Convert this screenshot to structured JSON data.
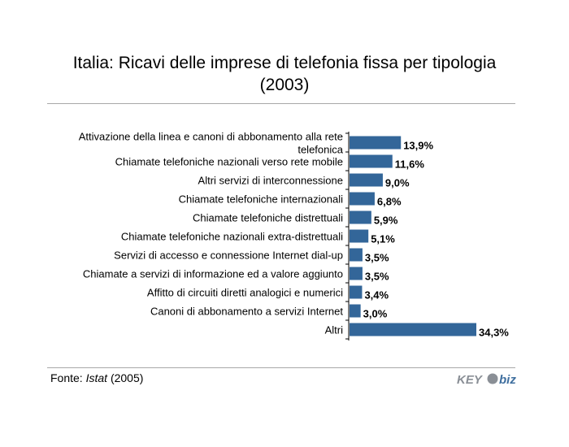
{
  "title_line1": "Italia: Ricavi delle imprese di telefonia fissa per tipologia",
  "title_line2": "(2003)",
  "source": {
    "prefix": "Fonte: ",
    "name": "Istat",
    "suffix": " (2005)"
  },
  "logo": {
    "text_key": "KEY",
    "text_biz": "biz"
  },
  "colors": {
    "bar": "#336699",
    "axis": "#000000"
  },
  "chart_data": {
    "type": "bar",
    "orientation": "horizontal",
    "title": "Italia: Ricavi delle imprese di telefonia fissa per tipologia (2003)",
    "xlabel": "",
    "ylabel": "",
    "unit": "%",
    "grid": false,
    "categories": [
      [
        "Attivazione della linea e canoni di abbonamento alla rete",
        "telefonica"
      ],
      [
        "Chiamate telefoniche nazionali verso rete mobile"
      ],
      [
        "Altri servizi di interconnessione"
      ],
      [
        "Chiamate telefoniche internazionali"
      ],
      [
        "Chiamate telefoniche distrettuali"
      ],
      [
        "Chiamate telefoniche nazionali extra-distrettuali"
      ],
      [
        "Servizi di accesso e connessione Internet dial-up"
      ],
      [
        "Chiamate a servizi di informazione ed a valore aggiunto"
      ],
      [
        "Affitto di circuiti diretti analogici e numerici"
      ],
      [
        "Canoni di abbonamento a servizi Internet"
      ],
      [
        "Altri"
      ]
    ],
    "values": [
      13.9,
      11.6,
      9.0,
      6.8,
      5.9,
      5.1,
      3.5,
      3.5,
      3.4,
      3.0,
      34.3
    ],
    "value_labels": [
      "13,9%",
      "11,6%",
      "9,0%",
      "6,8%",
      "5,9%",
      "5,1%",
      "3,5%",
      "3,5%",
      "3,4%",
      "3,0%",
      "34,3%"
    ]
  }
}
